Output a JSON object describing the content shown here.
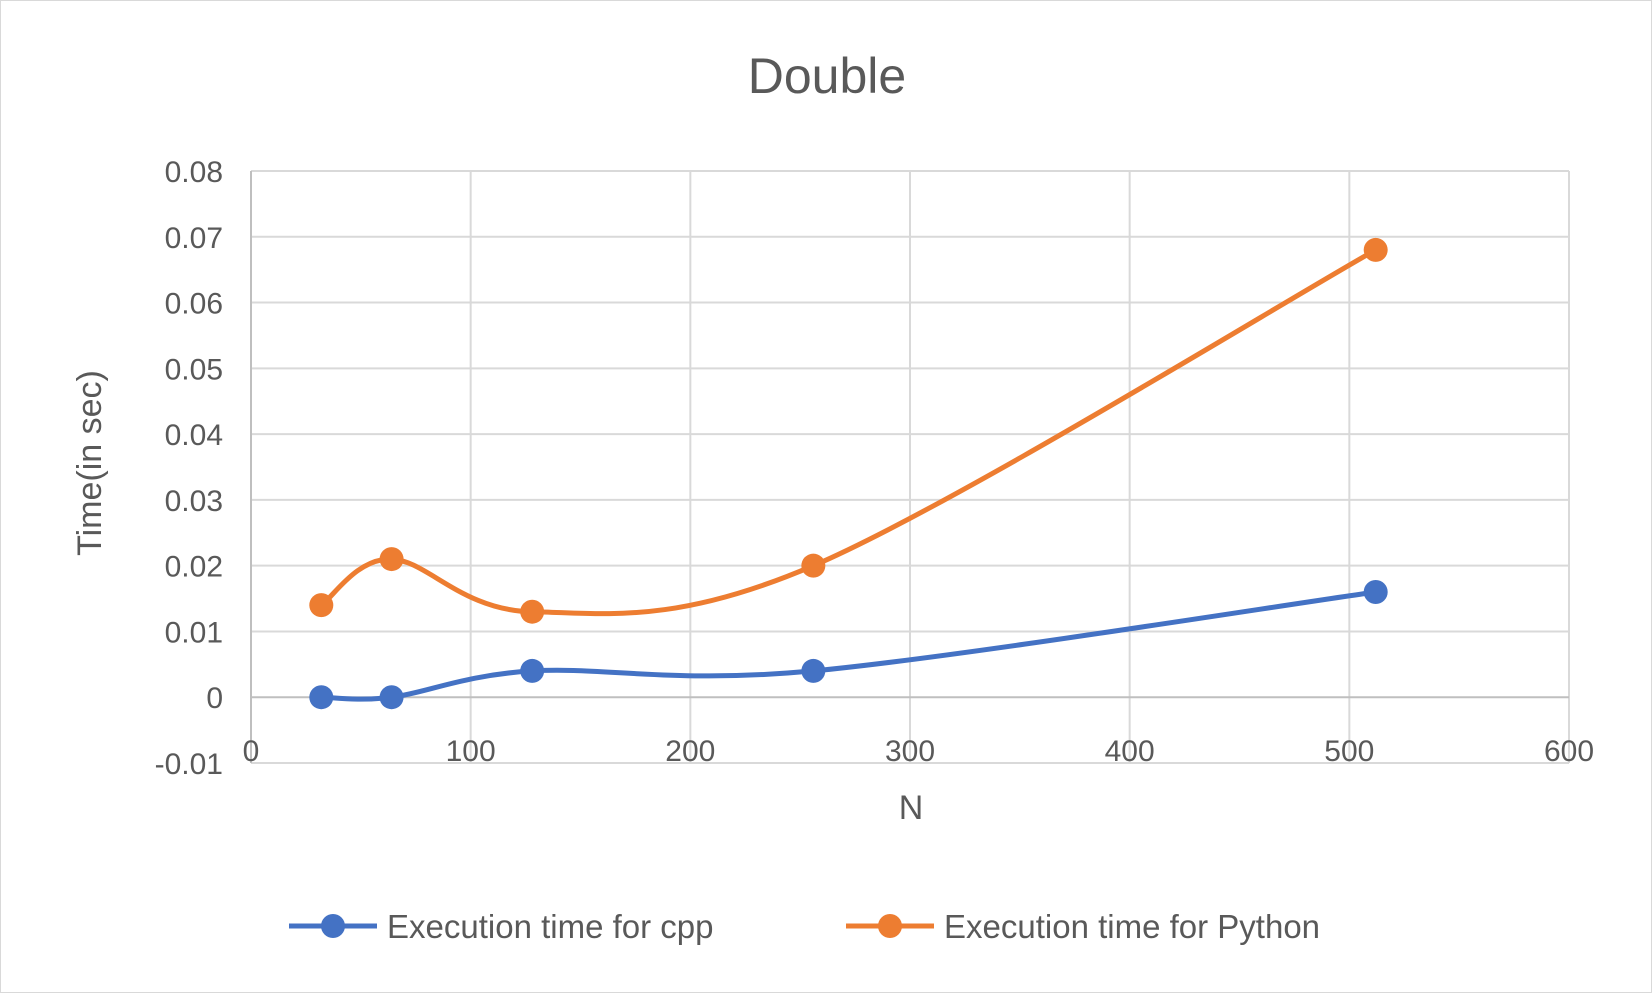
{
  "chart_data": {
    "type": "line",
    "title": "Double",
    "xlabel": "N",
    "ylabel": "Time(in sec)",
    "xlim": [
      0,
      600
    ],
    "ylim": [
      -0.01,
      0.08
    ],
    "x_ticks": [
      "0",
      "100",
      "200",
      "300",
      "400",
      "500",
      "600"
    ],
    "y_ticks": [
      "0.08",
      "0.07",
      "0.06",
      "0.05",
      "0.04",
      "0.03",
      "0.02",
      "0.01",
      "0",
      "-0.01"
    ],
    "grid": true,
    "smoothed": true,
    "legend_position": "bottom",
    "series": [
      {
        "name": "Execution time for cpp",
        "color": "#4472c4",
        "x": [
          32,
          64,
          128,
          256,
          512
        ],
        "y": [
          0,
          0,
          0.004,
          0.004,
          0.016
        ]
      },
      {
        "name": "Execution time for Python",
        "color": "#ed7d31",
        "x": [
          32,
          64,
          128,
          256,
          512
        ],
        "y": [
          0.014,
          0.021,
          0.013,
          0.02,
          0.068
        ]
      }
    ]
  }
}
